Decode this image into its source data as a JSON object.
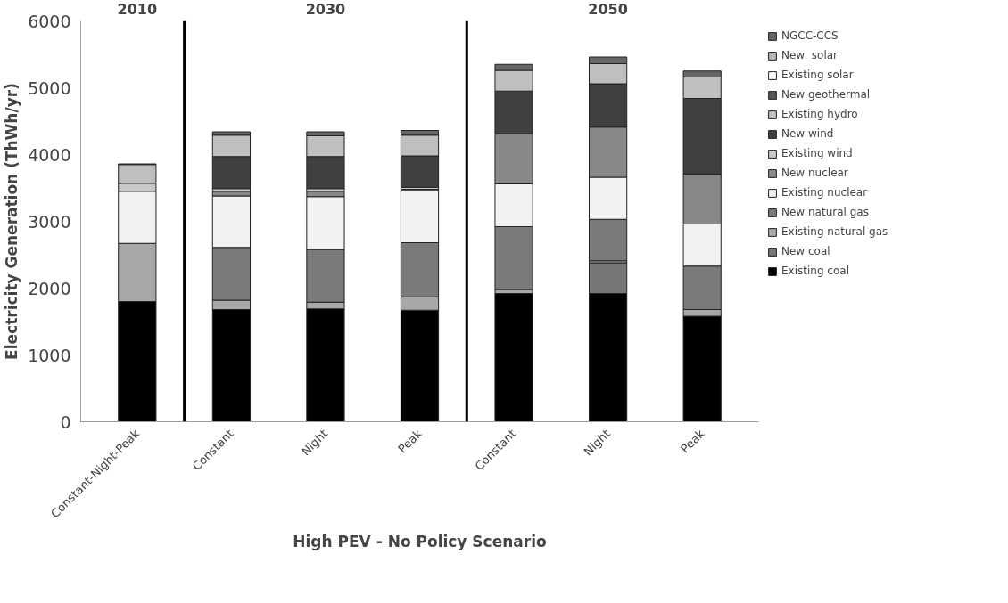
{
  "chart_data": {
    "type": "bar",
    "stacked": true,
    "xlabel": "High PEV - No Policy Scenario",
    "ylabel": "Electricity Generation (ThWh/yr)",
    "categories": [
      "Constant-Night-Peak",
      "Constant",
      "Night",
      "Peak",
      "Constant",
      "Night",
      "Peak"
    ],
    "annotations": [
      "2010",
      "2030",
      "2050"
    ],
    "ylim": [
      0,
      6000
    ],
    "yticks": [
      0,
      1000,
      2000,
      3000,
      4000,
      5000,
      6000
    ],
    "grid": false,
    "legend": "right",
    "series": [
      {
        "name": "Existing coal",
        "color": "#000000",
        "values": [
          1800,
          1680,
          1690,
          1670,
          1920,
          1920,
          1580
        ]
      },
      {
        "name": "New coal",
        "color": "#777777",
        "values": [
          0,
          0,
          0,
          0,
          0,
          460,
          0
        ]
      },
      {
        "name": "Existing natural gas",
        "color": "#a8a8a8",
        "values": [
          870,
          140,
          100,
          200,
          60,
          30,
          100
        ]
      },
      {
        "name": "New natural gas",
        "color": "#7a7a7a",
        "values": [
          0,
          790,
          790,
          810,
          940,
          620,
          650
        ]
      },
      {
        "name": "Existing nuclear",
        "color": "#f2f2f2",
        "values": [
          780,
          770,
          790,
          780,
          640,
          630,
          630
        ]
      },
      {
        "name": "New nuclear",
        "color": "#888888",
        "values": [
          0,
          70,
          80,
          20,
          750,
          750,
          750
        ]
      },
      {
        "name": "Existing wind",
        "color": "#c8c8c8",
        "values": [
          120,
          40,
          40,
          30,
          0,
          0,
          0
        ]
      },
      {
        "name": "New wind",
        "color": "#404040",
        "values": [
          0,
          480,
          480,
          470,
          640,
          650,
          1130
        ]
      },
      {
        "name": "Existing hydro",
        "color": "#bfbfbf",
        "values": [
          280,
          320,
          310,
          310,
          310,
          300,
          320
        ]
      },
      {
        "name": "New geothermal",
        "color": "#555555",
        "values": [
          0,
          0,
          0,
          0,
          0,
          0,
          0
        ]
      },
      {
        "name": "Existing solar",
        "color": "#ffffff",
        "values": [
          0,
          0,
          0,
          0,
          0,
          0,
          0
        ]
      },
      {
        "name": "New  solar",
        "color": "#b5b5b5",
        "values": [
          0,
          0,
          0,
          0,
          0,
          0,
          0
        ]
      },
      {
        "name": "NGCC-CCS",
        "color": "#666666",
        "values": [
          10,
          50,
          60,
          70,
          90,
          100,
          90
        ]
      }
    ]
  }
}
